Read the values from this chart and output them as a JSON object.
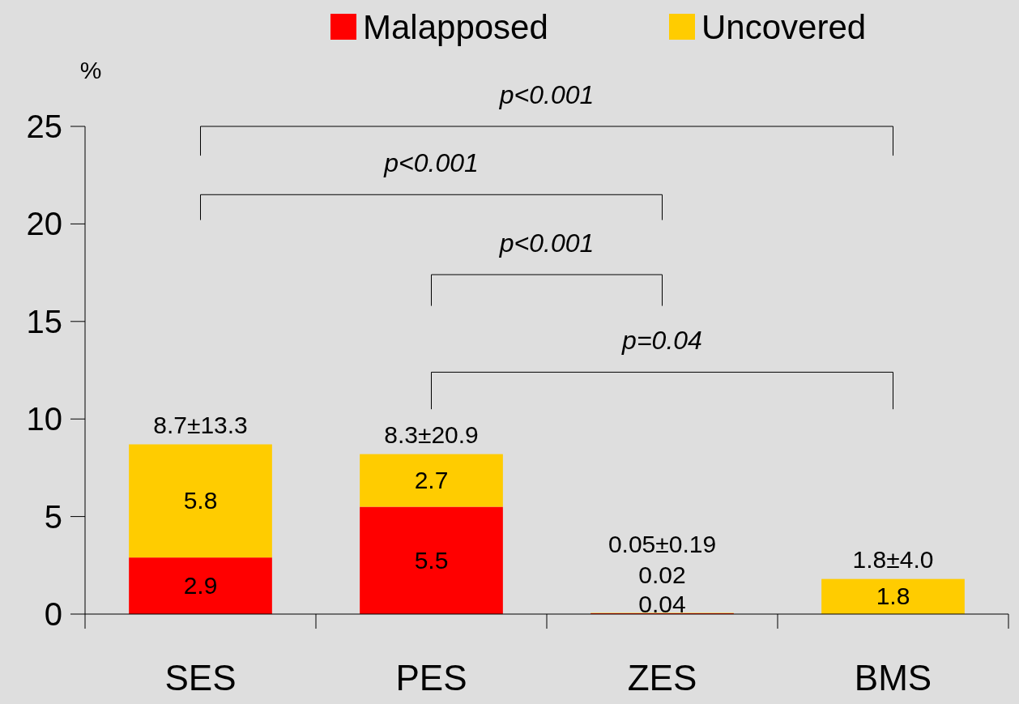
{
  "chart_data": {
    "type": "bar",
    "stacked": true,
    "categories": [
      "SES",
      "PES",
      "ZES",
      "BMS"
    ],
    "ylabel": "%",
    "ylim": [
      0,
      25
    ],
    "yticks": [
      0,
      5,
      10,
      15,
      20,
      25
    ],
    "grid": false,
    "legend": "top",
    "series": [
      {
        "name": "Malapposed",
        "color": "#ff0000",
        "values": [
          2.9,
          5.5,
          0.04,
          null
        ],
        "value_labels": [
          "2.9",
          "5.5",
          "0.04",
          null
        ]
      },
      {
        "name": "Uncovered",
        "color": "#ffcc00",
        "values": [
          5.8,
          2.7,
          0.02,
          1.8
        ],
        "value_labels": [
          "5.8",
          "2.7",
          "0.02",
          "1.8"
        ]
      }
    ],
    "totals": [
      "8.7±13.3",
      "8.3±20.9",
      "0.05±0.19",
      "1.8±4.0"
    ],
    "annotations": [
      "p<0.001",
      "p<0.001",
      "p<0.001",
      "p=0.04"
    ]
  }
}
